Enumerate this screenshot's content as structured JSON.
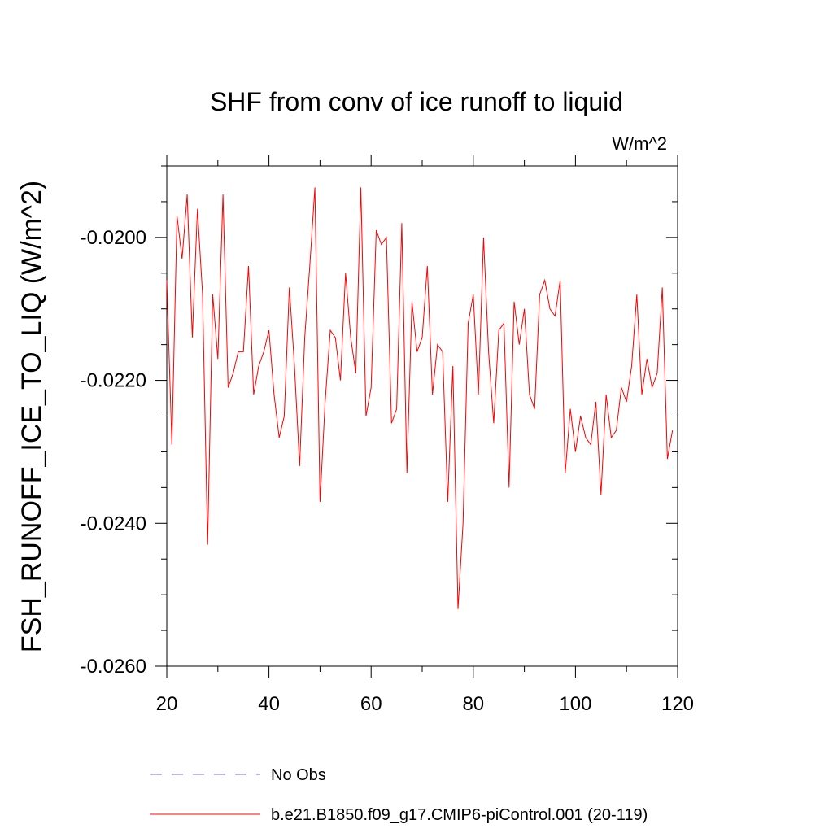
{
  "chart_data": {
    "type": "line",
    "title": "SHF from conv of ice runoff to liquid",
    "units": "W/m^2",
    "ylabel": "FSH_RUNOFF_ICE_TO_LIQ  (W/m^2)",
    "xlabel": "",
    "xlim": [
      20,
      120
    ],
    "ylim": [
      -0.026,
      -0.019
    ],
    "x_ticks": [
      20,
      40,
      60,
      80,
      100,
      120
    ],
    "x_tick_labels": [
      "20",
      "40",
      "60",
      "80",
      "100",
      "120"
    ],
    "y_ticks": [
      -0.02,
      -0.022,
      -0.024,
      -0.026
    ],
    "y_tick_labels": [
      "-0.0200",
      "-0.0220",
      "-0.0240",
      "-0.0260"
    ],
    "legend_position": "bottom",
    "series": [
      {
        "name": "No Obs",
        "color": "#7b68ee",
        "style": "dashed",
        "x": [],
        "values": []
      },
      {
        "name": "b.e21.B1850.f09_g17.CMIP6-piControl.001 (20-119)",
        "color": "#ff0000",
        "style": "solid",
        "x": [
          20,
          21,
          22,
          23,
          24,
          25,
          26,
          27,
          28,
          29,
          30,
          31,
          32,
          33,
          34,
          35,
          36,
          37,
          38,
          39,
          40,
          41,
          42,
          43,
          44,
          45,
          46,
          47,
          48,
          49,
          50,
          51,
          52,
          53,
          54,
          55,
          56,
          57,
          58,
          59,
          60,
          61,
          62,
          63,
          64,
          65,
          66,
          67,
          68,
          69,
          70,
          71,
          72,
          73,
          74,
          75,
          76,
          77,
          78,
          79,
          80,
          81,
          82,
          83,
          84,
          85,
          86,
          87,
          88,
          89,
          90,
          91,
          92,
          93,
          94,
          95,
          96,
          97,
          98,
          99,
          100,
          101,
          102,
          103,
          104,
          105,
          106,
          107,
          108,
          109,
          110,
          111,
          112,
          113,
          114,
          115,
          116,
          117,
          118,
          119
        ],
        "values": [
          -0.0206,
          -0.0229,
          -0.0197,
          -0.0203,
          -0.0194,
          -0.0214,
          -0.0196,
          -0.0208,
          -0.0243,
          -0.0208,
          -0.0217,
          -0.0194,
          -0.0221,
          -0.0219,
          -0.0216,
          -0.0216,
          -0.0204,
          -0.0222,
          -0.0218,
          -0.0216,
          -0.0213,
          -0.0222,
          -0.0228,
          -0.0225,
          -0.0207,
          -0.0218,
          -0.0232,
          -0.0214,
          -0.0204,
          -0.0193,
          -0.0237,
          -0.0223,
          -0.0213,
          -0.0214,
          -0.022,
          -0.0205,
          -0.0214,
          -0.0219,
          -0.0193,
          -0.0225,
          -0.0221,
          -0.0199,
          -0.0201,
          -0.02,
          -0.0226,
          -0.0224,
          -0.0198,
          -0.0233,
          -0.0209,
          -0.0216,
          -0.0214,
          -0.0204,
          -0.0222,
          -0.0215,
          -0.0216,
          -0.0237,
          -0.0218,
          -0.0252,
          -0.024,
          -0.0212,
          -0.0208,
          -0.0222,
          -0.02,
          -0.0216,
          -0.0226,
          -0.0213,
          -0.0212,
          -0.0235,
          -0.0209,
          -0.0215,
          -0.021,
          -0.0222,
          -0.0224,
          -0.0208,
          -0.0206,
          -0.021,
          -0.0211,
          -0.0206,
          -0.0233,
          -0.0224,
          -0.023,
          -0.0225,
          -0.0228,
          -0.0229,
          -0.0223,
          -0.0236,
          -0.0222,
          -0.0228,
          -0.0227,
          -0.0221,
          -0.0223,
          -0.0218,
          -0.0208,
          -0.0222,
          -0.0217,
          -0.0221,
          -0.0219,
          -0.0207,
          -0.0231,
          -0.0227
        ]
      }
    ]
  }
}
